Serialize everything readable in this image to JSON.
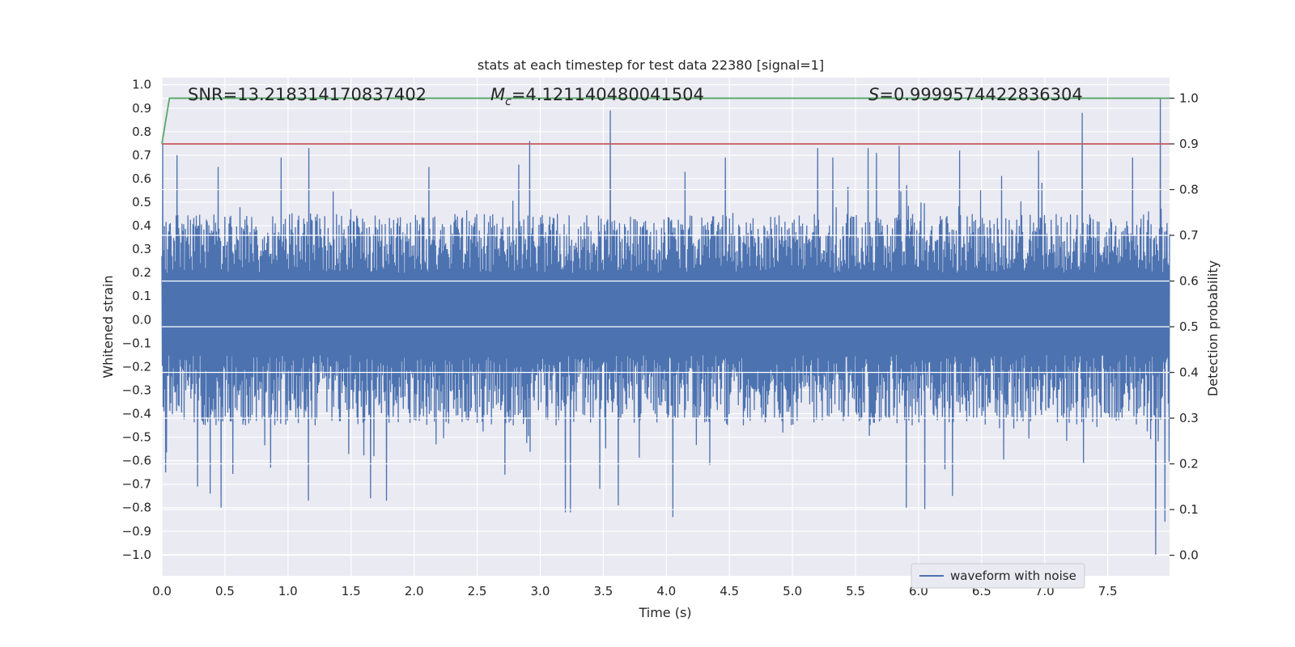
{
  "chart_data": {
    "type": "line",
    "title": "stats at each timestep for test data 22380 [signal=1]",
    "xlabel": "Time (s)",
    "ylabel_left": "Whitened strain",
    "ylabel_right": "Detection probability",
    "xlim": [
      0,
      7.99
    ],
    "ylim_left": [
      -1.09,
      1.03
    ],
    "ylim_right": [
      -0.045,
      1.045
    ],
    "x_ticks": [
      0.0,
      0.5,
      1.0,
      1.5,
      2.0,
      2.5,
      3.0,
      3.5,
      4.0,
      4.5,
      5.0,
      5.5,
      6.0,
      6.5,
      7.0,
      7.5
    ],
    "x_tick_labels": [
      "0.0",
      "0.5",
      "1.0",
      "1.5",
      "2.0",
      "2.5",
      "3.0",
      "3.5",
      "4.0",
      "4.5",
      "5.0",
      "5.5",
      "6.0",
      "6.5",
      "7.0",
      "7.5"
    ],
    "y_left_ticks": [
      1.0,
      0.9,
      0.8,
      0.7,
      0.6,
      0.5,
      0.4,
      0.3,
      0.2,
      0.1,
      0.0,
      -0.1,
      -0.2,
      -0.3,
      -0.4,
      -0.5,
      -0.6,
      -0.7,
      -0.8,
      -0.9,
      -1.0
    ],
    "y_left_tick_labels": [
      "1.0",
      "0.9",
      "0.8",
      "0.7",
      "0.6",
      "0.5",
      "0.4",
      "0.3",
      "0.2",
      "0.1",
      "0.0",
      "−0.1",
      "−0.2",
      "−0.3",
      "−0.4",
      "−0.5",
      "−0.6",
      "−0.7",
      "−0.8",
      "−0.9",
      "−1.0"
    ],
    "y_right_ticks": [
      1.0,
      0.9,
      0.8,
      0.7,
      0.6,
      0.5,
      0.4,
      0.3,
      0.2,
      0.1,
      0.0
    ],
    "y_right_tick_labels": [
      "1.0",
      "0.9",
      "0.8",
      "0.7",
      "0.6",
      "0.5",
      "0.4",
      "0.3",
      "0.2",
      "0.1",
      "0.0"
    ],
    "annotations": {
      "snr": "SNR=13.218314170837402",
      "mc_symbol": "M",
      "mc_sub": "c",
      "mc_value": "=4.121140480041504",
      "s_symbol": "S",
      "s_value": "=0.9999574422836304"
    },
    "legend": {
      "label": "waveform with noise",
      "placement": "lower-right"
    },
    "waveform": {
      "name": "waveform with noise",
      "color": "#4c72b0",
      "typical_upper": 0.45,
      "typical_lower": -0.45,
      "dense_band": [
        -0.15,
        0.2
      ],
      "peaks": [
        {
          "x": 0.01,
          "y": 0.75
        },
        {
          "x": 0.12,
          "y": 0.7
        },
        {
          "x": 0.45,
          "y": 0.65
        },
        {
          "x": 0.47,
          "y": -0.8
        },
        {
          "x": 0.38,
          "y": -0.74
        },
        {
          "x": 0.28,
          "y": -0.71
        },
        {
          "x": 0.03,
          "y": -0.65
        },
        {
          "x": 0.95,
          "y": 0.69
        },
        {
          "x": 1.17,
          "y": 0.73
        },
        {
          "x": 1.16,
          "y": -0.77
        },
        {
          "x": 0.86,
          "y": -0.63
        },
        {
          "x": 1.65,
          "y": -0.76
        },
        {
          "x": 1.78,
          "y": -0.77
        },
        {
          "x": 2.12,
          "y": 0.65
        },
        {
          "x": 2.83,
          "y": 0.66
        },
        {
          "x": 2.92,
          "y": 0.76
        },
        {
          "x": 2.72,
          "y": -0.66
        },
        {
          "x": 3.2,
          "y": -0.82
        },
        {
          "x": 3.24,
          "y": -0.82
        },
        {
          "x": 3.56,
          "y": 0.89
        },
        {
          "x": 3.47,
          "y": -0.72
        },
        {
          "x": 3.62,
          "y": -0.79
        },
        {
          "x": 4.05,
          "y": -0.84
        },
        {
          "x": 4.47,
          "y": 0.69
        },
        {
          "x": 5.2,
          "y": 0.73
        },
        {
          "x": 5.32,
          "y": 0.69
        },
        {
          "x": 5.6,
          "y": 0.73
        },
        {
          "x": 5.67,
          "y": 0.71
        },
        {
          "x": 5.85,
          "y": 0.74
        },
        {
          "x": 5.9,
          "y": -0.8
        },
        {
          "x": 6.05,
          "y": -0.81
        },
        {
          "x": 6.27,
          "y": -0.75
        },
        {
          "x": 6.33,
          "y": 0.72
        },
        {
          "x": 6.95,
          "y": 0.72
        },
        {
          "x": 7.3,
          "y": 0.88
        },
        {
          "x": 7.7,
          "y": 0.69
        },
        {
          "x": 7.88,
          "y": -1.0
        },
        {
          "x": 7.92,
          "y": 0.94
        },
        {
          "x": 7.95,
          "y": -0.86
        }
      ]
    },
    "threshold": {
      "value": 0.9,
      "axis": "right",
      "color": "#c44e52"
    },
    "detection_probability": {
      "color": "#55a868",
      "x": [
        0.0,
        0.06,
        7.99
      ],
      "y": [
        0.9,
        1.0,
        1.0
      ]
    }
  }
}
